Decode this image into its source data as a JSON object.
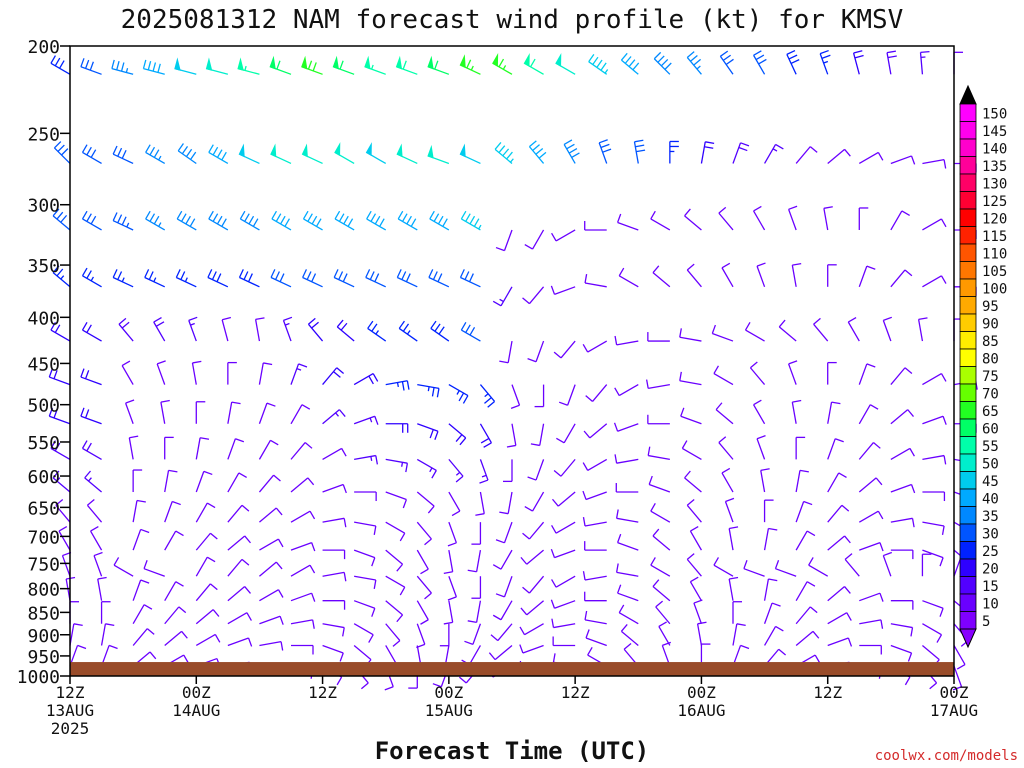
{
  "footer": {
    "credit": "coolwx.com/models"
  },
  "chart_data": {
    "type": "wind-barb-profile",
    "title": "2025081312 NAM forecast wind profile (kt) for KMSV",
    "xlabel": "Forecast Time (UTC)",
    "ylabel": "",
    "y_scale": "log-pressure",
    "ylim": [
      1000,
      200
    ],
    "xlim": [
      "2025-08-13T12Z",
      "2025-08-17T00Z"
    ],
    "x_ticks": [
      {
        "time": "2025-08-13T12Z",
        "line1": "12Z",
        "line2": "13AUG",
        "line3": "2025"
      },
      {
        "time": "2025-08-14T00Z",
        "line1": "00Z",
        "line2": "14AUG",
        "line3": ""
      },
      {
        "time": "2025-08-14T12Z",
        "line1": "12Z",
        "line2": "",
        "line3": ""
      },
      {
        "time": "2025-08-15T00Z",
        "line1": "00Z",
        "line2": "15AUG",
        "line3": ""
      },
      {
        "time": "2025-08-15T12Z",
        "line1": "12Z",
        "line2": "",
        "line3": ""
      },
      {
        "time": "2025-08-16T00Z",
        "line1": "00Z",
        "line2": "16AUG",
        "line3": ""
      },
      {
        "time": "2025-08-16T12Z",
        "line1": "12Z",
        "line2": "",
        "line3": ""
      },
      {
        "time": "2025-08-17T00Z",
        "line1": "00Z",
        "line2": "17AUG",
        "line3": ""
      }
    ],
    "y_ticks": [
      200,
      250,
      300,
      350,
      400,
      450,
      500,
      550,
      600,
      650,
      700,
      750,
      800,
      850,
      900,
      950,
      1000
    ],
    "time_step_hours": 3,
    "times": [
      "2025-08-13T12Z",
      "2025-08-13T15Z",
      "2025-08-13T18Z",
      "2025-08-13T21Z",
      "2025-08-14T00Z",
      "2025-08-14T03Z",
      "2025-08-14T06Z",
      "2025-08-14T09Z",
      "2025-08-14T12Z",
      "2025-08-14T15Z",
      "2025-08-14T18Z",
      "2025-08-14T21Z",
      "2025-08-15T00Z",
      "2025-08-15T03Z",
      "2025-08-15T06Z",
      "2025-08-15T09Z",
      "2025-08-15T12Z",
      "2025-08-15T15Z",
      "2025-08-15T18Z",
      "2025-08-15T21Z",
      "2025-08-16T00Z",
      "2025-08-16T03Z",
      "2025-08-16T06Z",
      "2025-08-16T09Z",
      "2025-08-16T12Z",
      "2025-08-16T15Z",
      "2025-08-16T18Z",
      "2025-08-16T21Z",
      "2025-08-17T00Z"
    ],
    "pressure_levels": [
      215,
      270,
      320,
      370,
      425,
      475,
      525,
      575,
      625,
      675,
      725,
      775,
      825,
      875,
      925,
      975
    ],
    "wind_speed_kt": [
      [
        28,
        32,
        35,
        42,
        48,
        52,
        55,
        60,
        68,
        60,
        55,
        58,
        62,
        65,
        65,
        58,
        50,
        45,
        40,
        38,
        35,
        32,
        30,
        28,
        25,
        22,
        18,
        15,
        12
      ],
      [
        30,
        30,
        32,
        35,
        38,
        42,
        48,
        50,
        52,
        50,
        48,
        50,
        52,
        48,
        45,
        42,
        38,
        32,
        30,
        25,
        22,
        18,
        15,
        12,
        10,
        10,
        10,
        10,
        12
      ],
      [
        30,
        32,
        34,
        36,
        38,
        38,
        38,
        40,
        40,
        40,
        40,
        40,
        40,
        45,
        12,
        10,
        10,
        10,
        10,
        10,
        10,
        10,
        10,
        10,
        10,
        10,
        10,
        10,
        10
      ],
      [
        25,
        25,
        25,
        25,
        25,
        28,
        28,
        30,
        30,
        30,
        30,
        30,
        30,
        32,
        15,
        10,
        10,
        10,
        10,
        10,
        10,
        10,
        10,
        10,
        10,
        10,
        10,
        10,
        10
      ],
      [
        22,
        22,
        18,
        18,
        15,
        12,
        12,
        15,
        20,
        20,
        25,
        25,
        28,
        30,
        10,
        10,
        10,
        10,
        10,
        10,
        10,
        10,
        10,
        10,
        10,
        10,
        10,
        10,
        10
      ],
      [
        20,
        20,
        12,
        10,
        10,
        10,
        12,
        15,
        20,
        22,
        25,
        25,
        25,
        25,
        10,
        10,
        10,
        10,
        10,
        10,
        10,
        10,
        10,
        10,
        10,
        10,
        10,
        10,
        10
      ],
      [
        20,
        20,
        10,
        10,
        10,
        10,
        10,
        12,
        15,
        15,
        20,
        20,
        20,
        20,
        10,
        10,
        10,
        10,
        10,
        10,
        10,
        10,
        10,
        10,
        10,
        10,
        10,
        10,
        10
      ],
      [
        18,
        18,
        10,
        10,
        10,
        10,
        10,
        10,
        12,
        15,
        15,
        15,
        15,
        15,
        10,
        10,
        10,
        10,
        10,
        10,
        10,
        10,
        10,
        10,
        10,
        10,
        10,
        10,
        10
      ],
      [
        15,
        15,
        10,
        10,
        10,
        10,
        10,
        10,
        10,
        10,
        10,
        10,
        10,
        10,
        10,
        10,
        10,
        10,
        10,
        10,
        10,
        10,
        10,
        10,
        10,
        10,
        10,
        10,
        10
      ],
      [
        12,
        12,
        10,
        10,
        10,
        10,
        10,
        10,
        10,
        10,
        10,
        10,
        10,
        10,
        10,
        10,
        10,
        10,
        10,
        10,
        10,
        10,
        10,
        10,
        10,
        10,
        10,
        10,
        10
      ],
      [
        10,
        10,
        10,
        10,
        10,
        10,
        10,
        10,
        10,
        10,
        10,
        10,
        10,
        10,
        10,
        10,
        10,
        10,
        10,
        10,
        10,
        10,
        10,
        10,
        10,
        10,
        10,
        10,
        10
      ],
      [
        10,
        10,
        12,
        12,
        10,
        10,
        10,
        10,
        10,
        10,
        10,
        10,
        10,
        10,
        10,
        10,
        10,
        10,
        10,
        10,
        10,
        12,
        12,
        12,
        12,
        10,
        10,
        10,
        10
      ],
      [
        10,
        10,
        10,
        10,
        10,
        10,
        10,
        10,
        10,
        10,
        10,
        10,
        10,
        10,
        10,
        10,
        10,
        10,
        10,
        10,
        10,
        10,
        10,
        10,
        10,
        10,
        10,
        10,
        10
      ],
      [
        10,
        10,
        10,
        10,
        10,
        10,
        10,
        10,
        10,
        10,
        10,
        10,
        10,
        10,
        10,
        10,
        10,
        10,
        10,
        10,
        10,
        10,
        10,
        10,
        10,
        10,
        10,
        10,
        10
      ],
      [
        10,
        10,
        10,
        10,
        10,
        10,
        10,
        10,
        10,
        10,
        10,
        10,
        10,
        10,
        10,
        10,
        10,
        10,
        10,
        10,
        10,
        10,
        10,
        10,
        10,
        10,
        10,
        10,
        10
      ],
      [
        10,
        10,
        10,
        10,
        10,
        10,
        10,
        10,
        10,
        10,
        10,
        10,
        10,
        10,
        10,
        10,
        10,
        10,
        10,
        10,
        10,
        10,
        10,
        10,
        10,
        10,
        10,
        10,
        10
      ]
    ],
    "wind_direction_deg": [
      [
        300,
        290,
        285,
        285,
        285,
        285,
        285,
        290,
        290,
        290,
        290,
        290,
        290,
        295,
        300,
        300,
        300,
        305,
        310,
        315,
        320,
        325,
        330,
        335,
        340,
        345,
        350,
        355,
        0
      ],
      [
        315,
        300,
        295,
        300,
        305,
        300,
        295,
        295,
        295,
        300,
        300,
        295,
        290,
        295,
        310,
        320,
        330,
        340,
        350,
        0,
        10,
        20,
        30,
        40,
        50,
        60,
        70,
        80,
        90
      ],
      [
        310,
        300,
        295,
        300,
        300,
        300,
        300,
        300,
        300,
        300,
        300,
        300,
        300,
        300,
        200,
        210,
        240,
        270,
        290,
        300,
        310,
        320,
        330,
        340,
        350,
        0,
        30,
        60,
        90
      ],
      [
        310,
        300,
        295,
        295,
        295,
        295,
        295,
        295,
        295,
        295,
        295,
        295,
        295,
        295,
        210,
        220,
        250,
        280,
        300,
        310,
        320,
        330,
        340,
        350,
        0,
        20,
        40,
        60,
        90
      ],
      [
        300,
        300,
        320,
        330,
        340,
        345,
        350,
        340,
        320,
        310,
        305,
        305,
        305,
        300,
        190,
        200,
        220,
        240,
        260,
        270,
        280,
        290,
        300,
        310,
        320,
        330,
        340,
        350,
        0
      ],
      [
        290,
        290,
        330,
        340,
        350,
        0,
        10,
        20,
        40,
        60,
        80,
        100,
        120,
        140,
        160,
        180,
        200,
        220,
        240,
        260,
        280,
        300,
        320,
        340,
        0,
        20,
        40,
        60,
        80
      ],
      [
        290,
        290,
        340,
        350,
        0,
        10,
        20,
        30,
        50,
        70,
        90,
        110,
        130,
        150,
        170,
        190,
        210,
        230,
        250,
        270,
        290,
        310,
        330,
        350,
        10,
        30,
        50,
        70,
        90
      ],
      [
        300,
        300,
        350,
        0,
        10,
        20,
        30,
        40,
        60,
        80,
        100,
        120,
        140,
        160,
        180,
        200,
        220,
        240,
        260,
        280,
        300,
        320,
        340,
        0,
        20,
        40,
        60,
        80,
        100
      ],
      [
        310,
        310,
        0,
        10,
        20,
        30,
        40,
        50,
        70,
        90,
        110,
        130,
        150,
        170,
        190,
        210,
        230,
        250,
        270,
        290,
        310,
        330,
        350,
        10,
        30,
        50,
        70,
        90,
        110
      ],
      [
        320,
        320,
        10,
        20,
        30,
        40,
        50,
        60,
        80,
        100,
        120,
        140,
        160,
        180,
        200,
        220,
        240,
        260,
        280,
        300,
        320,
        340,
        0,
        20,
        40,
        60,
        80,
        100,
        120
      ],
      [
        330,
        330,
        20,
        30,
        40,
        50,
        60,
        70,
        90,
        110,
        130,
        150,
        170,
        190,
        210,
        230,
        250,
        270,
        290,
        310,
        330,
        350,
        10,
        30,
        50,
        70,
        90,
        110,
        130
      ],
      [
        340,
        340,
        300,
        290,
        30,
        40,
        50,
        60,
        80,
        100,
        120,
        140,
        160,
        180,
        200,
        220,
        240,
        260,
        280,
        300,
        320,
        300,
        290,
        290,
        300,
        320,
        340,
        0,
        20
      ],
      [
        350,
        350,
        20,
        30,
        40,
        50,
        60,
        70,
        90,
        110,
        130,
        150,
        170,
        190,
        210,
        230,
        250,
        270,
        290,
        310,
        330,
        350,
        10,
        30,
        50,
        70,
        90,
        110,
        130
      ],
      [
        0,
        0,
        30,
        40,
        50,
        60,
        70,
        80,
        100,
        120,
        140,
        160,
        180,
        200,
        220,
        240,
        260,
        280,
        300,
        320,
        340,
        0,
        20,
        40,
        60,
        80,
        100,
        120,
        140
      ],
      [
        10,
        10,
        40,
        50,
        60,
        70,
        80,
        90,
        110,
        130,
        150,
        170,
        190,
        210,
        230,
        250,
        270,
        290,
        310,
        330,
        350,
        10,
        30,
        50,
        70,
        90,
        110,
        130,
        150
      ],
      [
        20,
        20,
        50,
        60,
        70,
        80,
        90,
        100,
        120,
        140,
        160,
        180,
        200,
        220,
        240,
        260,
        280,
        300,
        320,
        340,
        0,
        20,
        40,
        60,
        80,
        100,
        120,
        140,
        160
      ]
    ],
    "colorbar": {
      "labels": [
        5,
        10,
        15,
        20,
        25,
        30,
        35,
        40,
        45,
        50,
        55,
        60,
        65,
        70,
        75,
        80,
        85,
        90,
        95,
        100,
        105,
        110,
        115,
        120,
        125,
        130,
        135,
        140,
        145,
        150
      ],
      "colors": [
        "#7f00ff",
        "#6a00ff",
        "#5200ff",
        "#2e00ff",
        "#0022ff",
        "#0055ff",
        "#0088ff",
        "#00aaff",
        "#00ccee",
        "#00eecc",
        "#00ffaa",
        "#00ff66",
        "#22ff22",
        "#66ff00",
        "#aaff00",
        "#ffff00",
        "#ffee00",
        "#ffcc00",
        "#ffaa00",
        "#ff9900",
        "#ff7700",
        "#ff5500",
        "#ff2200",
        "#ff0000",
        "#ff0033",
        "#ff0066",
        "#ff0099",
        "#ff00cc",
        "#ff00ee",
        "#ff00ff"
      ],
      "under_color": "#8800ff",
      "over_color": "#000000"
    },
    "terrain_color": "#994c2a",
    "legend_position": "right",
    "grid": false
  }
}
